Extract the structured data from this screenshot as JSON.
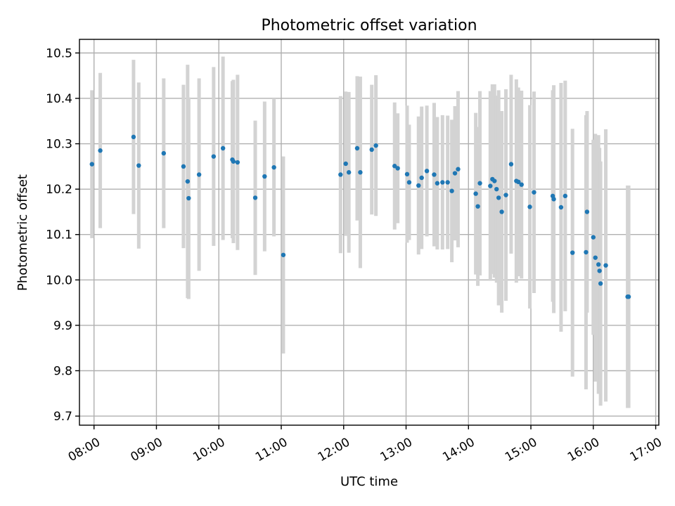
{
  "chart_data": {
    "type": "scatter",
    "title": "Photometric offset variation",
    "xlabel": "UTC time",
    "ylabel": "Photometric offset",
    "x_format": "HH:MM",
    "xlim": [
      "07:46",
      "17:03"
    ],
    "ylim": [
      9.68,
      10.53
    ],
    "x_ticks": [
      "08:00",
      "09:00",
      "10:00",
      "11:00",
      "12:00",
      "13:00",
      "14:00",
      "15:00",
      "16:00",
      "17:00"
    ],
    "y_ticks": [
      9.7,
      9.8,
      9.9,
      10.0,
      10.1,
      10.2,
      10.3,
      10.4,
      10.5
    ],
    "y_tick_labels": [
      "9.7",
      "9.8",
      "9.9",
      "10.0",
      "10.1",
      "10.2",
      "10.3",
      "10.4",
      "10.5"
    ],
    "grid": true,
    "colors": {
      "point": "#1f77b4",
      "errorbar": "#d3d3d3",
      "grid": "#b0b0b0"
    },
    "series": [
      {
        "x": [
          "07:58",
          "08:06",
          "08:38",
          "08:43",
          "09:07",
          "09:26",
          "09:30",
          "09:31",
          "09:41",
          "09:55",
          "10:04",
          "10:13",
          "10:14",
          "10:18",
          "10:35",
          "10:44",
          "10:53",
          "11:02",
          "11:57",
          "12:02",
          "12:05",
          "12:13",
          "12:16",
          "12:27",
          "12:31",
          "12:49",
          "12:52",
          "13:01",
          "13:03",
          "13:12",
          "13:15",
          "13:20",
          "13:27",
          "13:30",
          "13:35",
          "13:40",
          "13:44",
          "13:47",
          "13:50",
          "14:07",
          "14:09",
          "14:11",
          "14:21",
          "14:23",
          "14:25",
          "14:27",
          "14:29",
          "14:32",
          "14:36",
          "14:41",
          "14:46",
          "14:48",
          "14:51",
          "14:59",
          "15:03",
          "15:21",
          "15:22",
          "15:29",
          "15:33",
          "15:40",
          "15:53",
          "15:54",
          "16:00",
          "16:02",
          "16:05",
          "16:06",
          "16:07",
          "16:12",
          "16:33",
          "16:34"
        ],
        "y": [
          10.255,
          10.285,
          10.315,
          10.252,
          10.279,
          10.25,
          10.217,
          10.18,
          10.232,
          10.272,
          10.29,
          10.265,
          10.261,
          10.259,
          10.181,
          10.228,
          10.248,
          10.055,
          10.232,
          10.256,
          10.237,
          10.29,
          10.237,
          10.287,
          10.296,
          10.251,
          10.246,
          10.233,
          10.215,
          10.208,
          10.225,
          10.24,
          10.232,
          10.213,
          10.215,
          10.215,
          10.196,
          10.235,
          10.244,
          10.19,
          10.162,
          10.213,
          10.207,
          10.222,
          10.218,
          10.2,
          10.181,
          10.15,
          10.187,
          10.255,
          10.218,
          10.216,
          10.21,
          10.161,
          10.193,
          10.185,
          10.178,
          10.16,
          10.185,
          10.06,
          10.061,
          10.15,
          10.094,
          10.049,
          10.034,
          10.02,
          9.992,
          10.032,
          9.963,
          9.963
        ],
        "yerr": [
          0.163,
          0.171,
          0.17,
          0.183,
          0.165,
          0.18,
          0.257,
          0.222,
          0.212,
          0.197,
          0.202,
          0.173,
          0.18,
          0.193,
          0.17,
          0.165,
          0.152,
          0.217,
          0.173,
          0.159,
          0.177,
          0.159,
          0.211,
          0.143,
          0.155,
          0.14,
          0.121,
          0.151,
          0.127,
          0.152,
          0.157,
          0.144,
          0.158,
          0.146,
          0.148,
          0.147,
          0.157,
          0.148,
          0.172,
          0.178,
          0.175,
          0.203,
          0.209,
          0.209,
          0.213,
          0.206,
          0.237,
          0.222,
          0.233,
          0.197,
          0.224,
          0.208,
          0.207,
          0.224,
          0.222,
          0.233,
          0.251,
          0.274,
          0.254,
          0.273,
          0.302,
          0.222,
          0.215,
          0.273,
          0.285,
          0.271,
          0.269,
          0.3,
          0.245,
          0.245
        ]
      }
    ]
  }
}
